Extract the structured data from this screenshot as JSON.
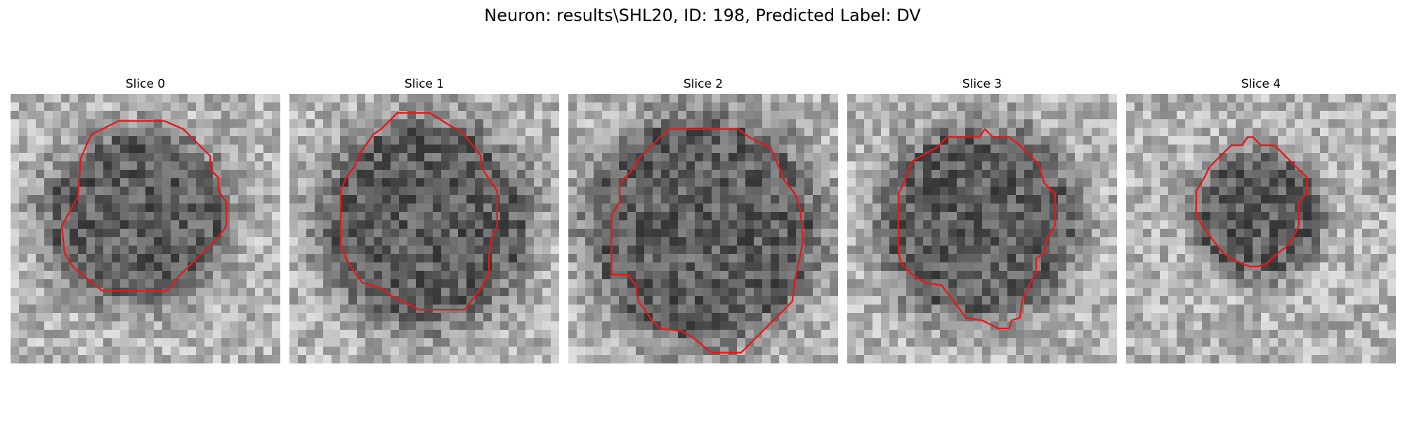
{
  "figure": {
    "title": "Neuron: results\\SHL20, ID: 198, Predicted Label: DV",
    "contour_color": "#e31a1c",
    "panels": [
      {
        "label": "Slice 0",
        "seed": 11,
        "blob": [
          0.47,
          0.46,
          0.32,
          0.3
        ],
        "contour": [
          [
            0.4,
            0.1
          ],
          [
            0.57,
            0.1
          ],
          [
            0.64,
            0.13
          ],
          [
            0.74,
            0.23
          ],
          [
            0.74,
            0.28
          ],
          [
            0.77,
            0.31
          ],
          [
            0.77,
            0.36
          ],
          [
            0.8,
            0.4
          ],
          [
            0.8,
            0.49
          ],
          [
            0.77,
            0.53
          ],
          [
            0.73,
            0.57
          ],
          [
            0.69,
            0.61
          ],
          [
            0.65,
            0.65
          ],
          [
            0.61,
            0.69
          ],
          [
            0.58,
            0.73
          ],
          [
            0.34,
            0.73
          ],
          [
            0.29,
            0.69
          ],
          [
            0.23,
            0.64
          ],
          [
            0.2,
            0.59
          ],
          [
            0.19,
            0.49
          ],
          [
            0.25,
            0.38
          ],
          [
            0.26,
            0.24
          ],
          [
            0.29,
            0.17
          ],
          [
            0.3,
            0.15
          ],
          [
            0.34,
            0.13
          ]
        ]
      },
      {
        "label": "Slice 1",
        "seed": 23,
        "blob": [
          0.5,
          0.48,
          0.36,
          0.36
        ],
        "contour": [
          [
            0.4,
            0.07
          ],
          [
            0.52,
            0.07
          ],
          [
            0.6,
            0.12
          ],
          [
            0.64,
            0.14
          ],
          [
            0.71,
            0.23
          ],
          [
            0.71,
            0.27
          ],
          [
            0.73,
            0.3
          ],
          [
            0.77,
            0.36
          ],
          [
            0.77,
            0.49
          ],
          [
            0.75,
            0.53
          ],
          [
            0.74,
            0.59
          ],
          [
            0.74,
            0.66
          ],
          [
            0.71,
            0.72
          ],
          [
            0.65,
            0.8
          ],
          [
            0.48,
            0.8
          ],
          [
            0.38,
            0.75
          ],
          [
            0.34,
            0.72
          ],
          [
            0.27,
            0.7
          ],
          [
            0.24,
            0.66
          ],
          [
            0.21,
            0.61
          ],
          [
            0.19,
            0.57
          ],
          [
            0.19,
            0.36
          ],
          [
            0.21,
            0.31
          ],
          [
            0.24,
            0.27
          ],
          [
            0.26,
            0.22
          ],
          [
            0.29,
            0.18
          ],
          [
            0.31,
            0.15
          ],
          [
            0.34,
            0.13
          ]
        ]
      },
      {
        "label": "Slice 2",
        "seed": 37,
        "blob": [
          0.5,
          0.5,
          0.4,
          0.4
        ],
        "contour": [
          [
            0.37,
            0.13
          ],
          [
            0.63,
            0.13
          ],
          [
            0.67,
            0.16
          ],
          [
            0.75,
            0.2
          ],
          [
            0.78,
            0.27
          ],
          [
            0.8,
            0.32
          ],
          [
            0.84,
            0.37
          ],
          [
            0.86,
            0.43
          ],
          [
            0.87,
            0.54
          ],
          [
            0.86,
            0.6
          ],
          [
            0.84,
            0.69
          ],
          [
            0.83,
            0.77
          ],
          [
            0.77,
            0.83
          ],
          [
            0.71,
            0.89
          ],
          [
            0.64,
            0.96
          ],
          [
            0.53,
            0.96
          ],
          [
            0.47,
            0.91
          ],
          [
            0.42,
            0.88
          ],
          [
            0.34,
            0.87
          ],
          [
            0.31,
            0.84
          ],
          [
            0.29,
            0.81
          ],
          [
            0.26,
            0.77
          ],
          [
            0.25,
            0.71
          ],
          [
            0.22,
            0.67
          ],
          [
            0.16,
            0.67
          ],
          [
            0.16,
            0.45
          ],
          [
            0.19,
            0.4
          ],
          [
            0.19,
            0.33
          ],
          [
            0.23,
            0.29
          ],
          [
            0.26,
            0.24
          ],
          [
            0.3,
            0.2
          ]
        ]
      },
      {
        "label": "Slice 3",
        "seed": 51,
        "blob": [
          0.49,
          0.48,
          0.34,
          0.34
        ],
        "contour": [
          [
            0.49,
            0.16
          ],
          [
            0.51,
            0.13
          ],
          [
            0.54,
            0.16
          ],
          [
            0.6,
            0.16
          ],
          [
            0.64,
            0.19
          ],
          [
            0.67,
            0.22
          ],
          [
            0.71,
            0.26
          ],
          [
            0.73,
            0.33
          ],
          [
            0.77,
            0.37
          ],
          [
            0.77,
            0.49
          ],
          [
            0.74,
            0.53
          ],
          [
            0.73,
            0.59
          ],
          [
            0.7,
            0.61
          ],
          [
            0.7,
            0.66
          ],
          [
            0.67,
            0.72
          ],
          [
            0.65,
            0.76
          ],
          [
            0.64,
            0.83
          ],
          [
            0.61,
            0.84
          ],
          [
            0.6,
            0.87
          ],
          [
            0.56,
            0.87
          ],
          [
            0.5,
            0.84
          ],
          [
            0.44,
            0.83
          ],
          [
            0.35,
            0.71
          ],
          [
            0.29,
            0.7
          ],
          [
            0.24,
            0.67
          ],
          [
            0.2,
            0.63
          ],
          [
            0.19,
            0.59
          ],
          [
            0.19,
            0.37
          ],
          [
            0.21,
            0.33
          ],
          [
            0.24,
            0.25
          ],
          [
            0.29,
            0.22
          ],
          [
            0.33,
            0.2
          ],
          [
            0.37,
            0.16
          ]
        ]
      },
      {
        "label": "Slice 4",
        "seed": 67,
        "blob": [
          0.49,
          0.45,
          0.22,
          0.22
        ],
        "contour": [
          [
            0.45,
            0.16
          ],
          [
            0.47,
            0.16
          ],
          [
            0.5,
            0.19
          ],
          [
            0.55,
            0.19
          ],
          [
            0.59,
            0.23
          ],
          [
            0.63,
            0.27
          ],
          [
            0.67,
            0.31
          ],
          [
            0.67,
            0.37
          ],
          [
            0.64,
            0.4
          ],
          [
            0.64,
            0.49
          ],
          [
            0.62,
            0.53
          ],
          [
            0.59,
            0.57
          ],
          [
            0.55,
            0.6
          ],
          [
            0.52,
            0.63
          ],
          [
            0.49,
            0.64
          ],
          [
            0.46,
            0.64
          ],
          [
            0.43,
            0.63
          ],
          [
            0.39,
            0.61
          ],
          [
            0.36,
            0.59
          ],
          [
            0.32,
            0.54
          ],
          [
            0.29,
            0.5
          ],
          [
            0.26,
            0.45
          ],
          [
            0.26,
            0.36
          ],
          [
            0.29,
            0.31
          ],
          [
            0.31,
            0.27
          ],
          [
            0.35,
            0.23
          ],
          [
            0.39,
            0.19
          ],
          [
            0.43,
            0.19
          ]
        ]
      }
    ]
  }
}
